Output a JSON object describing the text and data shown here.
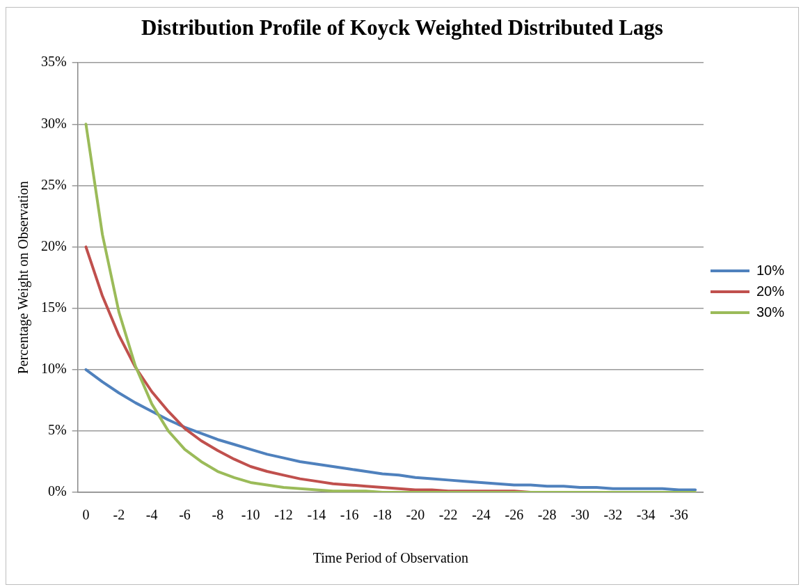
{
  "chart_data": {
    "type": "line",
    "title": "Distribution Profile of Koyck Weighted Distributed Lags",
    "xlabel": "Time Period of Observation",
    "ylabel": "Percentage Weight on Observation",
    "categories": [
      "0",
      null,
      "-2",
      null,
      "-4",
      null,
      "-6",
      null,
      "-8",
      null,
      "-10",
      null,
      "-12",
      null,
      "-14",
      null,
      "-16",
      null,
      "-18",
      null,
      "-20",
      null,
      "-22",
      null,
      "-24",
      null,
      "-26",
      null,
      "-28",
      null,
      "-30",
      null,
      "-32",
      null,
      "-34",
      null,
      "-36",
      null
    ],
    "series": [
      {
        "name": "10%",
        "color": "#4f81bd",
        "values": [
          10,
          9,
          8.1,
          7.3,
          6.6,
          5.9,
          5.3,
          4.8,
          4.3,
          3.9,
          3.5,
          3.1,
          2.8,
          2.5,
          2.3,
          2.1,
          1.9,
          1.7,
          1.5,
          1.4,
          1.2,
          1.1,
          1,
          0.9,
          0.8,
          0.7,
          0.6,
          0.6,
          0.5,
          0.5,
          0.4,
          0.4,
          0.3,
          0.3,
          0.3,
          0.3,
          0.2,
          0.2
        ]
      },
      {
        "name": "20%",
        "color": "#c0504d",
        "values": [
          20,
          16,
          12.8,
          10.2,
          8.2,
          6.6,
          5.2,
          4.2,
          3.4,
          2.7,
          2.1,
          1.7,
          1.4,
          1.1,
          0.9,
          0.7,
          0.6,
          0.5,
          0.4,
          0.3,
          0.2,
          0.2,
          0.1,
          0.1,
          0.1,
          0.1,
          0.1,
          0,
          0,
          null,
          null,
          null,
          null,
          null,
          null,
          null,
          null,
          null
        ]
      },
      {
        "name": "30%",
        "color": "#9bbb59",
        "values": [
          30,
          21,
          14.7,
          10.3,
          7.2,
          5,
          3.5,
          2.5,
          1.7,
          1.2,
          0.8,
          0.6,
          0.4,
          0.3,
          0.2,
          0.1,
          0.1,
          0.1,
          0,
          0,
          0,
          0,
          0,
          0,
          0,
          0,
          0,
          0,
          0,
          0,
          0,
          0,
          0,
          0,
          0,
          0,
          0,
          0
        ]
      }
    ],
    "ylim": [
      0,
      35
    ],
    "yticks": [
      {
        "value": 0,
        "label": "0%"
      },
      {
        "value": 5,
        "label": "5%"
      },
      {
        "value": 10,
        "label": "10%"
      },
      {
        "value": 15,
        "label": "15%"
      },
      {
        "value": 20,
        "label": "20%"
      },
      {
        "value": 25,
        "label": "25%"
      },
      {
        "value": 30,
        "label": "30%"
      },
      {
        "value": 35,
        "label": "35%"
      }
    ],
    "grid": "y",
    "legend": "right",
    "marker": "none",
    "line_style": "solid"
  }
}
